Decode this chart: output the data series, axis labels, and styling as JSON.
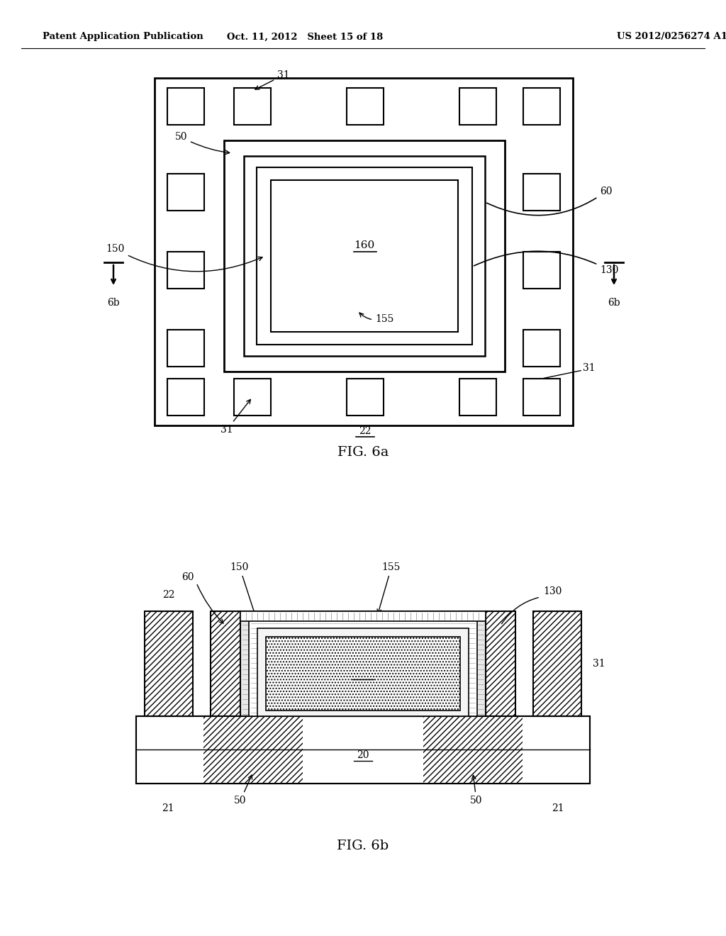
{
  "bg_color": "#ffffff",
  "lc": "#000000",
  "header_left": "Patent Application Publication",
  "header_mid": "Oct. 11, 2012   Sheet 15 of 18",
  "header_right": "US 2012/0256274 A1",
  "fig6a_label": "FIG. 6a",
  "fig6b_label": "FIG. 6b"
}
